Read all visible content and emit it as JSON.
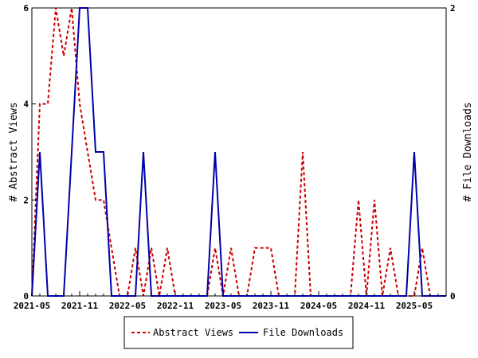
{
  "chart_data": {
    "type": "line",
    "x_ticks": [
      "2021-05",
      "2021-11",
      "2022-05",
      "2022-11",
      "2023-05",
      "2023-11",
      "2024-05",
      "2024-11",
      "2025-05"
    ],
    "left_axis": {
      "label": "# Abstract Views",
      "ticks": [
        "0",
        "2",
        "4",
        "6"
      ],
      "range": [
        0,
        6
      ]
    },
    "right_axis": {
      "label": "# File Downloads",
      "ticks": [
        "0",
        "2"
      ],
      "range": [
        0,
        2
      ]
    },
    "months": [
      "2021-05",
      "2021-06",
      "2021-07",
      "2021-08",
      "2021-09",
      "2021-10",
      "2021-11",
      "2021-12",
      "2022-01",
      "2022-02",
      "2022-03",
      "2022-04",
      "2022-05",
      "2022-06",
      "2022-07",
      "2022-08",
      "2022-09",
      "2022-10",
      "2022-11",
      "2022-12",
      "2023-01",
      "2023-02",
      "2023-03",
      "2023-04",
      "2023-05",
      "2023-06",
      "2023-07",
      "2023-08",
      "2023-09",
      "2023-10",
      "2023-11",
      "2023-12",
      "2024-01",
      "2024-02",
      "2024-03",
      "2024-04",
      "2024-05",
      "2024-06",
      "2024-07",
      "2024-08",
      "2024-09",
      "2024-10",
      "2024-11",
      "2024-12",
      "2025-01",
      "2025-02",
      "2025-03",
      "2025-04",
      "2025-05",
      "2025-06",
      "2025-07",
      "2025-08",
      "2025-09"
    ],
    "series": [
      {
        "name": "Abstract Views",
        "axis": "left",
        "color": "#cc0000",
        "dashed": true,
        "values": [
          0,
          4,
          4,
          6,
          5,
          6,
          4,
          3,
          2,
          2,
          1,
          0,
          0,
          1,
          0,
          1,
          0,
          1,
          0,
          0,
          0,
          0,
          0,
          1,
          0,
          1,
          0,
          0,
          1,
          1,
          1,
          0,
          0,
          0,
          3,
          0,
          0,
          0,
          0,
          0,
          0,
          2,
          0,
          2,
          0,
          1,
          0,
          0,
          0,
          1,
          0,
          0,
          0
        ]
      },
      {
        "name": "File Downloads",
        "axis": "right",
        "color": "#0000aa",
        "dashed": false,
        "values": [
          0,
          1,
          0,
          0,
          0,
          1,
          2,
          2,
          1,
          1,
          0,
          0,
          0,
          0,
          1,
          0,
          0,
          0,
          0,
          0,
          0,
          0,
          0,
          1,
          0,
          0,
          0,
          0,
          0,
          0,
          0,
          0,
          0,
          0,
          0,
          0,
          0,
          0,
          0,
          0,
          0,
          0,
          0,
          0,
          0,
          0,
          0,
          0,
          1,
          0,
          0,
          0,
          0
        ]
      }
    ],
    "grid": false,
    "legend_position": "bottom"
  }
}
